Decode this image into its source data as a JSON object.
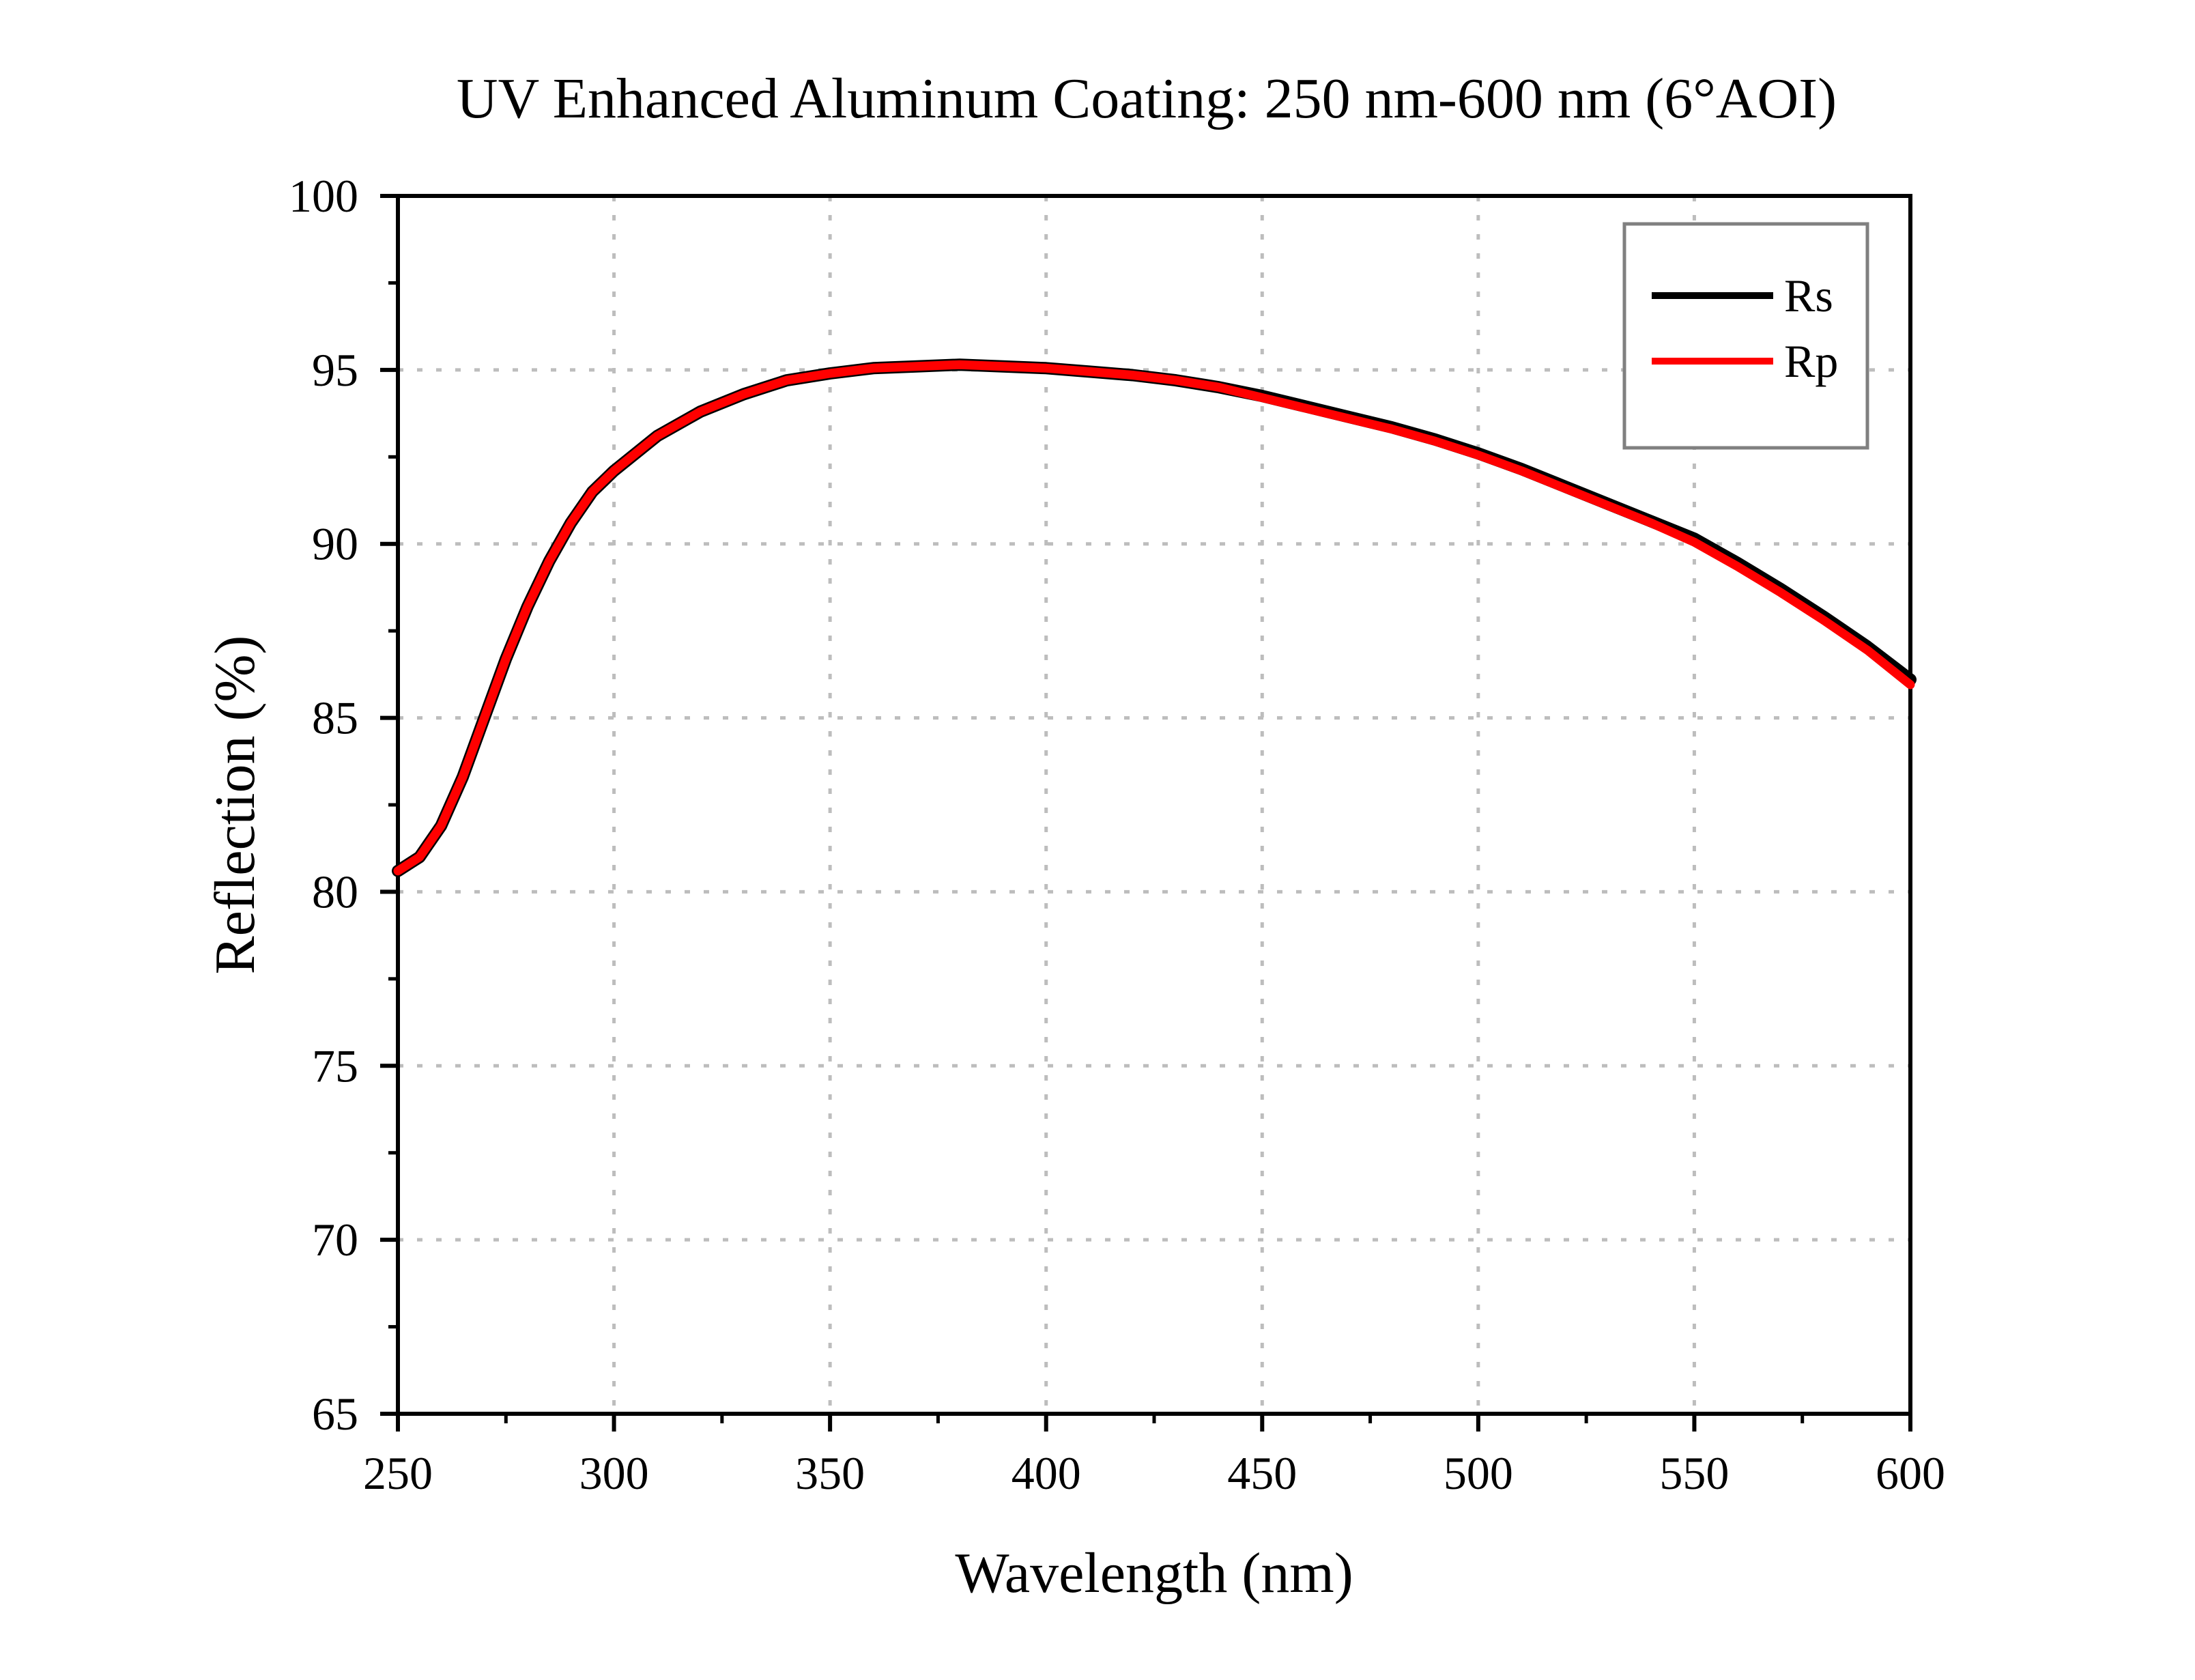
{
  "chart_data": {
    "type": "line",
    "title": "UV Enhanced Aluminum Coating: 250 nm-600 nm (6°AOI)",
    "xlabel": "Wavelength (nm)",
    "ylabel": "Reflection (%)",
    "xlim": [
      250,
      600
    ],
    "ylim": [
      65,
      100
    ],
    "xticks": [
      250,
      300,
      350,
      400,
      450,
      500,
      550,
      600
    ],
    "yticks": [
      65,
      70,
      75,
      80,
      85,
      90,
      95,
      100
    ],
    "grid": true,
    "legend_position": "top-right",
    "series": [
      {
        "name": "Rs",
        "color": "#000000",
        "x": [
          250,
          255,
          260,
          265,
          270,
          275,
          280,
          285,
          290,
          295,
          300,
          310,
          320,
          330,
          340,
          350,
          360,
          370,
          380,
          390,
          400,
          410,
          420,
          430,
          440,
          450,
          460,
          470,
          480,
          490,
          500,
          510,
          520,
          530,
          540,
          550,
          560,
          570,
          580,
          590,
          600
        ],
        "y": [
          80.6,
          81.0,
          81.9,
          83.3,
          85.0,
          86.7,
          88.2,
          89.5,
          90.6,
          91.5,
          92.1,
          93.1,
          93.8,
          94.3,
          94.7,
          94.9,
          95.05,
          95.1,
          95.15,
          95.1,
          95.05,
          94.95,
          94.85,
          94.7,
          94.5,
          94.25,
          93.95,
          93.65,
          93.35,
          93.0,
          92.6,
          92.15,
          91.65,
          91.15,
          90.65,
          90.15,
          89.45,
          88.7,
          87.9,
          87.05,
          86.1
        ]
      },
      {
        "name": "Rp",
        "color": "#ff0000",
        "x": [
          250,
          255,
          260,
          265,
          270,
          275,
          280,
          285,
          290,
          295,
          300,
          310,
          320,
          330,
          340,
          350,
          360,
          370,
          380,
          390,
          400,
          410,
          420,
          430,
          440,
          450,
          460,
          470,
          480,
          490,
          500,
          510,
          520,
          530,
          540,
          550,
          560,
          570,
          580,
          590,
          600
        ],
        "y": [
          80.6,
          81.0,
          81.9,
          83.3,
          85.0,
          86.7,
          88.2,
          89.5,
          90.6,
          91.5,
          92.1,
          93.1,
          93.8,
          94.3,
          94.7,
          94.9,
          95.05,
          95.1,
          95.15,
          95.1,
          95.05,
          94.95,
          94.85,
          94.7,
          94.5,
          94.2,
          93.9,
          93.6,
          93.3,
          92.95,
          92.55,
          92.1,
          91.6,
          91.1,
          90.6,
          90.05,
          89.35,
          88.6,
          87.8,
          86.95,
          85.95
        ]
      }
    ]
  }
}
